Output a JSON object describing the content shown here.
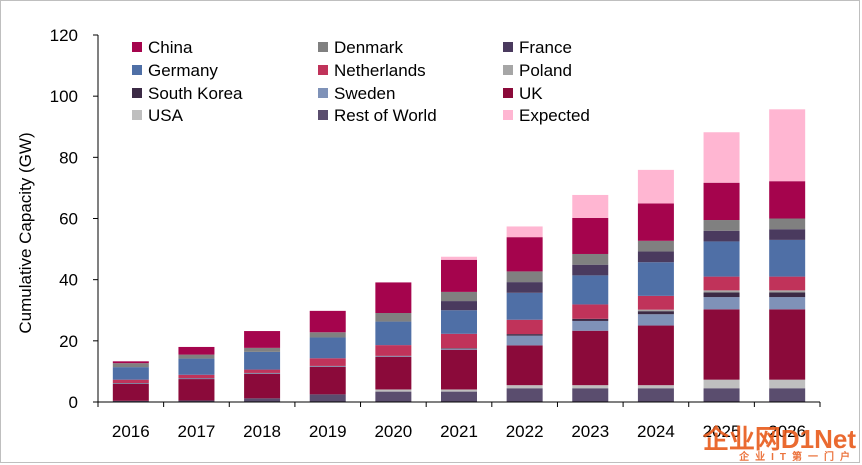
{
  "chart_data": {
    "type": "bar",
    "stacked": true,
    "title": "",
    "xlabel": "",
    "ylabel": "Cumulative Capacity (GW)",
    "ylim": [
      0,
      120
    ],
    "yticks": [
      0,
      20,
      40,
      60,
      80,
      100,
      120
    ],
    "grid": false,
    "legend_position": "top-left, inside plot, 3 columns",
    "categories": [
      "2016",
      "2017",
      "2018",
      "2019",
      "2020",
      "2021",
      "2022",
      "2023",
      "2024",
      "2025",
      "2026"
    ],
    "series": [
      {
        "name": "Rest of World",
        "color": "#5a4d6e",
        "values": [
          0.4,
          0.5,
          1.2,
          2.5,
          3.4,
          3.4,
          4.5,
          4.5,
          4.5,
          4.5,
          4.5
        ]
      },
      {
        "name": "USA",
        "color": "#bfbfbf",
        "values": [
          0.0,
          0.0,
          0.0,
          0.0,
          0.7,
          0.7,
          1.0,
          1.0,
          1.0,
          2.8,
          2.8
        ]
      },
      {
        "name": "UK",
        "color": "#8b0a3a",
        "values": [
          5.5,
          7.0,
          8.0,
          9.0,
          10.7,
          13.0,
          13.0,
          17.8,
          19.5,
          23.0,
          23.0
        ]
      },
      {
        "name": "Sweden",
        "color": "#7f92b8",
        "values": [
          0.2,
          0.2,
          0.2,
          0.2,
          0.2,
          0.3,
          3.2,
          3.2,
          3.7,
          4.0,
          4.0
        ]
      },
      {
        "name": "South Korea",
        "color": "#3b2a45",
        "values": [
          0.1,
          0.1,
          0.1,
          0.1,
          0.1,
          0.2,
          0.5,
          0.7,
          1.0,
          1.5,
          1.5
        ]
      },
      {
        "name": "Poland",
        "color": "#a6a6a6",
        "values": [
          0.0,
          0.0,
          0.0,
          0.0,
          0.0,
          0.0,
          0.0,
          0.0,
          0.5,
          0.7,
          0.7
        ]
      },
      {
        "name": "Netherlands",
        "color": "#c0335a",
        "values": [
          1.1,
          1.1,
          1.1,
          2.5,
          3.5,
          4.7,
          4.7,
          4.7,
          4.5,
          4.5,
          4.5
        ]
      },
      {
        "name": "Germany",
        "color": "#4f6fa6",
        "values": [
          4.1,
          5.3,
          5.8,
          6.8,
          7.7,
          7.7,
          8.8,
          9.5,
          11.0,
          11.5,
          12.0
        ]
      },
      {
        "name": "France",
        "color": "#4a3a5e",
        "values": [
          0.0,
          0.0,
          0.0,
          0.0,
          0.0,
          3.0,
          3.5,
          3.5,
          3.5,
          3.5,
          3.5
        ]
      },
      {
        "name": "Denmark",
        "color": "#808080",
        "values": [
          1.3,
          1.3,
          1.3,
          1.7,
          2.8,
          3.0,
          3.5,
          3.5,
          3.5,
          3.5,
          3.5
        ]
      },
      {
        "name": "China",
        "color": "#a5044d",
        "values": [
          0.6,
          2.5,
          5.5,
          7.0,
          10.0,
          10.5,
          11.2,
          11.8,
          12.2,
          12.2,
          12.2
        ]
      },
      {
        "name": "Expected",
        "color": "#ffb6d2",
        "values": [
          0.0,
          0.0,
          0.0,
          0.0,
          0.0,
          1.0,
          3.5,
          7.5,
          11.0,
          16.5,
          23.5
        ]
      }
    ],
    "legend_order": [
      "China",
      "Denmark",
      "France",
      "Germany",
      "Netherlands",
      "Poland",
      "South Korea",
      "Sweden",
      "UK",
      "USA",
      "Rest of World",
      "Expected"
    ]
  },
  "watermark": {
    "main": "企业网D1Net",
    "sub": "企业IT第一门户"
  }
}
